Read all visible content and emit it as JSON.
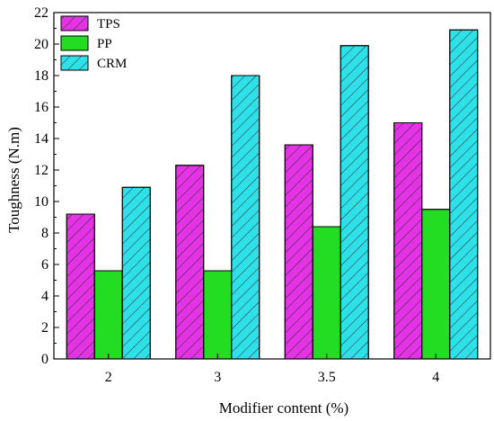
{
  "chart_data": {
    "type": "bar",
    "xlabel": "Modifier content (%)",
    "ylabel": "Toughness (N.m)",
    "categories": [
      "2",
      "3",
      "3.5",
      "4"
    ],
    "ylim": [
      0,
      22
    ],
    "yticks": [
      0,
      2,
      4,
      6,
      8,
      10,
      12,
      14,
      16,
      18,
      20,
      22
    ],
    "grid": false,
    "legend_position": "top-left",
    "series": [
      {
        "name": "TPS",
        "values": [
          9.2,
          12.3,
          13.6,
          15.0
        ],
        "color": "#e433e4",
        "hatch": "diagonal"
      },
      {
        "name": "PP",
        "values": [
          5.6,
          5.6,
          8.4,
          9.5
        ],
        "color": "#22dd22",
        "hatch": "none"
      },
      {
        "name": "CRM",
        "values": [
          10.9,
          18.0,
          19.9,
          20.9
        ],
        "color": "#2ee0e8",
        "hatch": "diagonal"
      }
    ]
  }
}
